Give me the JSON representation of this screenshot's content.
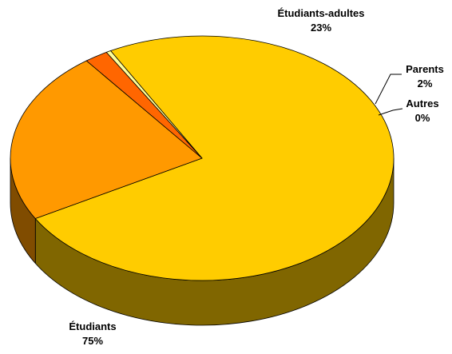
{
  "chart_data": {
    "type": "pie",
    "title": "",
    "style": "3d",
    "slices": [
      {
        "label": "Étudiants",
        "value": 75,
        "value_label": "75%",
        "color": "#FFCC00",
        "side_color": "#806600"
      },
      {
        "label": "Étudiants-adultes",
        "value": 23,
        "value_label": "23%",
        "color": "#FF9900",
        "side_color": "#804C00"
      },
      {
        "label": "Parents",
        "value": 2,
        "value_label": "2%",
        "color": "#FF6600",
        "side_color": "#803300"
      },
      {
        "label": "Autres",
        "value": 0.4,
        "value_label": "0%",
        "color": "#FFFF99",
        "side_color": "#80804C"
      }
    ],
    "legend": "none"
  }
}
